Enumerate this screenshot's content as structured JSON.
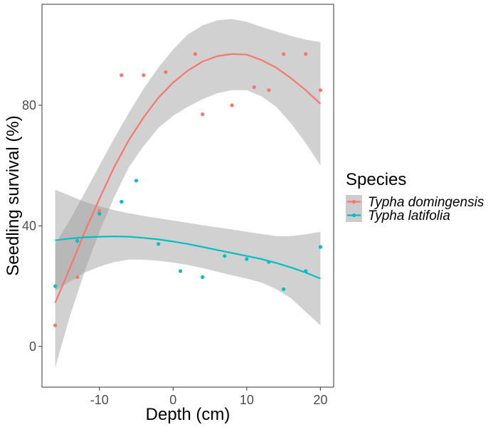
{
  "chart_data": {
    "type": "scatter",
    "xlabel": "Depth (cm)",
    "ylabel": "Seedling survival (%)",
    "xlim": [
      -17.8,
      21.8
    ],
    "ylim": [
      -13.5,
      113.5
    ],
    "x_ticks": [
      -10,
      0,
      10,
      20
    ],
    "y_ticks": [
      0,
      40,
      80
    ],
    "x_tick_labels": [
      "-10",
      "0",
      "10",
      "20"
    ],
    "y_tick_labels": [
      "0",
      "40",
      "80"
    ],
    "grid": false,
    "legend_position": "right",
    "legend_title": "Species",
    "smoothing": "loess with 95% confidence band",
    "series": [
      {
        "name": "Typha domingensis",
        "color": "#f8766d",
        "points": [
          [
            -16,
            7
          ],
          [
            -13,
            23
          ],
          [
            -10,
            45
          ],
          [
            -7,
            90
          ],
          [
            -4,
            90
          ],
          [
            -1,
            91
          ],
          [
            3,
            97
          ],
          [
            4,
            77
          ],
          [
            8,
            80
          ],
          [
            11,
            86
          ],
          [
            13,
            85
          ],
          [
            15,
            97
          ],
          [
            18,
            97
          ],
          [
            20,
            85
          ]
        ],
        "fit": [
          [
            -16,
            14.5
          ],
          [
            -14,
            26
          ],
          [
            -12,
            38
          ],
          [
            -10,
            49
          ],
          [
            -8,
            59.5
          ],
          [
            -6,
            68.5
          ],
          [
            -4,
            76
          ],
          [
            -2,
            82.5
          ],
          [
            0,
            87.5
          ],
          [
            2,
            91.5
          ],
          [
            4,
            94.5
          ],
          [
            6,
            96.3
          ],
          [
            8,
            97
          ],
          [
            10,
            96.8
          ],
          [
            12,
            95
          ],
          [
            14,
            92.5
          ],
          [
            16,
            89
          ],
          [
            18,
            85
          ],
          [
            20,
            80.5
          ]
        ],
        "band_upper": [
          [
            -16,
            34
          ],
          [
            -14,
            42
          ],
          [
            -12,
            51
          ],
          [
            -10,
            60
          ],
          [
            -8,
            69
          ],
          [
            -6,
            77.5
          ],
          [
            -4,
            85.5
          ],
          [
            -2,
            92.5
          ],
          [
            0,
            98.5
          ],
          [
            2,
            103.5
          ],
          [
            4,
            106.5
          ],
          [
            6,
            108.2
          ],
          [
            8,
            108.6
          ],
          [
            10,
            107.7
          ],
          [
            12,
            106
          ],
          [
            14,
            104.5
          ],
          [
            16,
            103
          ],
          [
            18,
            101.8
          ],
          [
            20,
            101
          ]
        ],
        "band_lower": [
          [
            -16,
            -7
          ],
          [
            -14,
            10
          ],
          [
            -12,
            25
          ],
          [
            -10,
            38
          ],
          [
            -8,
            49.5
          ],
          [
            -6,
            59.5
          ],
          [
            -4,
            66.5
          ],
          [
            -2,
            72.5
          ],
          [
            0,
            76.5
          ],
          [
            2,
            79.5
          ],
          [
            4,
            82
          ],
          [
            6,
            84
          ],
          [
            8,
            85
          ],
          [
            10,
            85
          ],
          [
            12,
            83
          ],
          [
            14,
            79.5
          ],
          [
            16,
            74
          ],
          [
            18,
            67.5
          ],
          [
            20,
            60
          ]
        ]
      },
      {
        "name": "Typha latifolia",
        "color": "#00bfc4",
        "points": [
          [
            -16,
            20
          ],
          [
            -13,
            35
          ],
          [
            -10,
            44
          ],
          [
            -7,
            48
          ],
          [
            -5,
            55
          ],
          [
            -2,
            34
          ],
          [
            1,
            25
          ],
          [
            4,
            23
          ],
          [
            7,
            30
          ],
          [
            10,
            29
          ],
          [
            13,
            28
          ],
          [
            15,
            19
          ],
          [
            18,
            25
          ],
          [
            20,
            33
          ]
        ],
        "fit": [
          [
            -16,
            35.2
          ],
          [
            -14,
            35.8
          ],
          [
            -12,
            36.2
          ],
          [
            -10,
            36.4
          ],
          [
            -8,
            36.5
          ],
          [
            -6,
            36.4
          ],
          [
            -4,
            36
          ],
          [
            -2,
            35.5
          ],
          [
            0,
            34.8
          ],
          [
            2,
            34
          ],
          [
            4,
            33
          ],
          [
            6,
            32
          ],
          [
            8,
            31
          ],
          [
            10,
            30
          ],
          [
            12,
            29
          ],
          [
            14,
            27.7
          ],
          [
            16,
            26.2
          ],
          [
            18,
            24.5
          ],
          [
            20,
            22.5
          ]
        ],
        "band_upper": [
          [
            -16,
            52
          ],
          [
            -14,
            50
          ],
          [
            -12,
            48
          ],
          [
            -10,
            46.5
          ],
          [
            -8,
            45.2
          ],
          [
            -6,
            44.2
          ],
          [
            -4,
            43.3
          ],
          [
            -2,
            42.5
          ],
          [
            0,
            41.8
          ],
          [
            2,
            41
          ],
          [
            4,
            40.2
          ],
          [
            6,
            39.5
          ],
          [
            8,
            38.8
          ],
          [
            10,
            38
          ],
          [
            12,
            37.3
          ],
          [
            14,
            36.6
          ],
          [
            16,
            36.6
          ],
          [
            18,
            37.2
          ],
          [
            20,
            38
          ]
        ],
        "band_lower": [
          [
            -16,
            18.5
          ],
          [
            -14,
            21.5
          ],
          [
            -12,
            24.5
          ],
          [
            -10,
            26.5
          ],
          [
            -8,
            28
          ],
          [
            -6,
            28.8
          ],
          [
            -4,
            28.8
          ],
          [
            -2,
            28.4
          ],
          [
            0,
            27.8
          ],
          [
            2,
            27
          ],
          [
            4,
            26
          ],
          [
            6,
            24.8
          ],
          [
            8,
            23.6
          ],
          [
            10,
            22.5
          ],
          [
            12,
            21.2
          ],
          [
            14,
            19
          ],
          [
            16,
            16
          ],
          [
            18,
            11.5
          ],
          [
            20,
            7
          ]
        ]
      }
    ]
  }
}
